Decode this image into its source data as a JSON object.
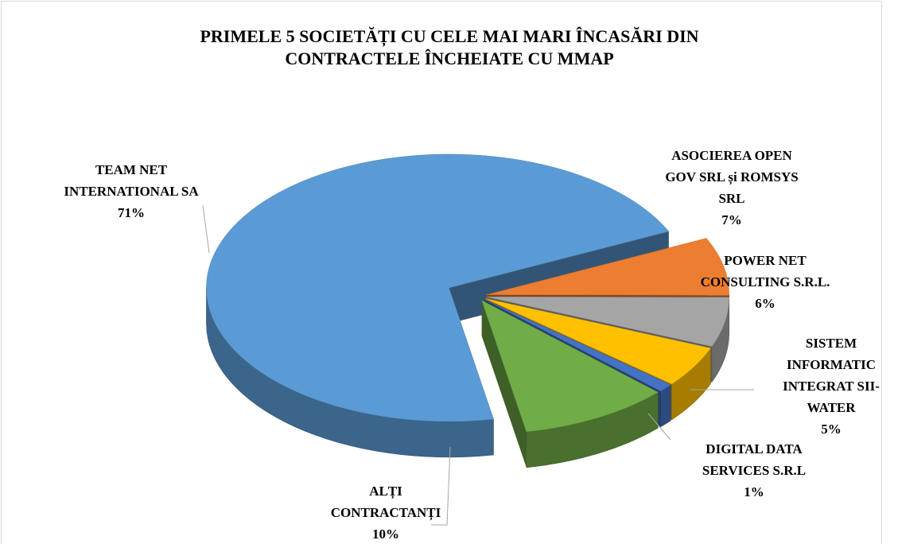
{
  "chart_data": {
    "type": "pie",
    "title": "PRIMELE 5 SOCIETĂȚI CU CELE MAI MARI ÎNCASĂRI DIN CONTRACTELE ÎNCHEIATE CU MMAP",
    "categories": [
      "TEAM NET INTERNATIONAL SA",
      "ASOCIEREA OPEN GOV SRL și ROMSYS SRL",
      "POWER NET CONSULTING S.R.L.",
      "SISTEM INFORMATIC INTEGRAT SII-WATER",
      "DIGITAL DATA SERVICES S.R.L",
      "ALȚI CONTRACTANȚI"
    ],
    "values": [
      71,
      7,
      6,
      5,
      1,
      10
    ],
    "value_labels": [
      "71%",
      "7%",
      "6%",
      "5%",
      "1%",
      "10%"
    ],
    "colors": [
      "#5b9bd5",
      "#ed7d31",
      "#a5a5a5",
      "#ffc000",
      "#4472c4",
      "#70ad47"
    ]
  }
}
